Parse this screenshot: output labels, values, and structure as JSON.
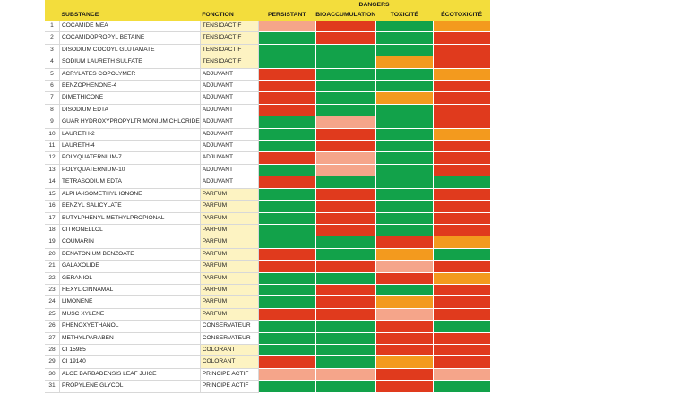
{
  "colors": {
    "header": "#f3dd3c",
    "function_highlight": "#fdf3c2",
    "g": "#12a24a",
    "r": "#e03a1d",
    "o": "#f39a1e",
    "p": "#f5a58a"
  },
  "header": {
    "group": "DANGERS",
    "substance": "SUBSTANCE",
    "function": "FONCTION",
    "cols": [
      "PERSISTANT",
      "BIOACCUMULATION",
      "TOXICITÉ",
      "ÉCOTOXICITÉ"
    ]
  },
  "rows": [
    {
      "n": "1",
      "substance": "COCAMIDE MEA",
      "function": "TENSIOACTIF",
      "hl": true,
      "dangers": [
        "p",
        "r",
        "g",
        "o"
      ]
    },
    {
      "n": "2",
      "substance": "COCAMIDOPROPYL BETAINE",
      "function": "TENSIOACTIF",
      "hl": true,
      "dangers": [
        "g",
        "r",
        "g",
        "r"
      ]
    },
    {
      "n": "3",
      "substance": "DISODIUM COCOYL GLUTAMATE",
      "function": "TENSIOACTIF",
      "hl": true,
      "dangers": [
        "g",
        "g",
        "g",
        "r"
      ]
    },
    {
      "n": "4",
      "substance": "SODIUM LAURETH SULFATE",
      "function": "TENSIOACTIF",
      "hl": true,
      "dangers": [
        "g",
        "g",
        "o",
        "r"
      ]
    },
    {
      "n": "5",
      "substance": "ACRYLATES COPOLYMER",
      "function": "ADJUVANT",
      "hl": false,
      "dangers": [
        "r",
        "g",
        "g",
        "o"
      ]
    },
    {
      "n": "6",
      "substance": "BENZOPHENONE-4",
      "function": "ADJUVANT",
      "hl": false,
      "dangers": [
        "r",
        "g",
        "g",
        "r"
      ]
    },
    {
      "n": "7",
      "substance": "DIMETHICONE",
      "function": "ADJUVANT",
      "hl": false,
      "dangers": [
        "r",
        "g",
        "o",
        "r"
      ]
    },
    {
      "n": "8",
      "substance": "DISODIUM EDTA",
      "function": "ADJUVANT",
      "hl": false,
      "dangers": [
        "r",
        "g",
        "g",
        "r"
      ]
    },
    {
      "n": "9",
      "substance": "GUAR HYDROXYPROPYLTRIMONIUM CHLORIDE",
      "function": "ADJUVANT",
      "hl": false,
      "dangers": [
        "g",
        "p",
        "g",
        "r"
      ]
    },
    {
      "n": "10",
      "substance": "LAURETH-2",
      "function": "ADJUVANT",
      "hl": false,
      "dangers": [
        "g",
        "r",
        "g",
        "o"
      ]
    },
    {
      "n": "11",
      "substance": "LAURETH-4",
      "function": "ADJUVANT",
      "hl": false,
      "dangers": [
        "g",
        "r",
        "g",
        "r"
      ]
    },
    {
      "n": "12",
      "substance": "POLYQUATERNIUM-7",
      "function": "ADJUVANT",
      "hl": false,
      "dangers": [
        "r",
        "p",
        "g",
        "r"
      ]
    },
    {
      "n": "13",
      "substance": "POLYQUATERNIUM-10",
      "function": "ADJUVANT",
      "hl": false,
      "dangers": [
        "g",
        "p",
        "g",
        "r"
      ]
    },
    {
      "n": "14",
      "substance": "TETRASODIUM EDTA",
      "function": "ADJUVANT",
      "hl": false,
      "dangers": [
        "r",
        "g",
        "g",
        "g"
      ]
    },
    {
      "n": "15",
      "substance": "ALPHA-ISOMETHYL IONONE",
      "function": "PARFUM",
      "hl": true,
      "dangers": [
        "g",
        "r",
        "g",
        "r"
      ]
    },
    {
      "n": "16",
      "substance": "BENZYL SALICYLATE",
      "function": "PARFUM",
      "hl": true,
      "dangers": [
        "g",
        "r",
        "g",
        "r"
      ]
    },
    {
      "n": "17",
      "substance": "BUTYLPHENYL METHYLPROPIONAL",
      "function": "PARFUM",
      "hl": true,
      "dangers": [
        "g",
        "r",
        "g",
        "r"
      ]
    },
    {
      "n": "18",
      "substance": "CITRONELLOL",
      "function": "PARFUM",
      "hl": true,
      "dangers": [
        "g",
        "r",
        "g",
        "r"
      ]
    },
    {
      "n": "19",
      "substance": "COUMARIN",
      "function": "PARFUM",
      "hl": true,
      "dangers": [
        "g",
        "g",
        "r",
        "o"
      ]
    },
    {
      "n": "20",
      "substance": "DENATONIUM BENZOATE",
      "function": "PARFUM",
      "hl": true,
      "dangers": [
        "r",
        "g",
        "o",
        "g"
      ]
    },
    {
      "n": "21",
      "substance": "GALAXOLIDE",
      "function": "PARFUM",
      "hl": true,
      "dangers": [
        "r",
        "r",
        "p",
        "r"
      ]
    },
    {
      "n": "22",
      "substance": "GERANIOL",
      "function": "PARFUM",
      "hl": true,
      "dangers": [
        "g",
        "g",
        "r",
        "o"
      ]
    },
    {
      "n": "23",
      "substance": "HEXYL CINNAMAL",
      "function": "PARFUM",
      "hl": true,
      "dangers": [
        "g",
        "r",
        "g",
        "r"
      ]
    },
    {
      "n": "24",
      "substance": "LIMONENE",
      "function": "PARFUM",
      "hl": true,
      "dangers": [
        "g",
        "r",
        "o",
        "r"
      ]
    },
    {
      "n": "25",
      "substance": "MUSC XYLENE",
      "function": "PARFUM",
      "hl": true,
      "dangers": [
        "r",
        "r",
        "p",
        "r"
      ]
    },
    {
      "n": "26",
      "substance": "PHENOXYETHANOL",
      "function": "CONSERVATEUR",
      "hl": false,
      "dangers": [
        "g",
        "g",
        "r",
        "g"
      ]
    },
    {
      "n": "27",
      "substance": "METHYLPARABEN",
      "function": "CONSERVATEUR",
      "hl": false,
      "dangers": [
        "g",
        "g",
        "r",
        "r"
      ]
    },
    {
      "n": "28",
      "substance": "CI 15985",
      "function": "COLORANT",
      "hl": true,
      "dangers": [
        "g",
        "g",
        "r",
        "r"
      ]
    },
    {
      "n": "29",
      "substance": "CI 19140",
      "function": "COLORANT",
      "hl": true,
      "dangers": [
        "r",
        "g",
        "o",
        "r"
      ]
    },
    {
      "n": "30",
      "substance": "ALOE BARBADENSIS LEAF JUICE",
      "function": "PRINCIPE ACTIF",
      "hl": false,
      "dangers": [
        "p",
        "p",
        "r",
        "p"
      ]
    },
    {
      "n": "31",
      "substance": "PROPYLENE GLYCOL",
      "function": "PRINCIPE ACTIF",
      "hl": false,
      "dangers": [
        "g",
        "g",
        "r",
        "g"
      ]
    }
  ]
}
